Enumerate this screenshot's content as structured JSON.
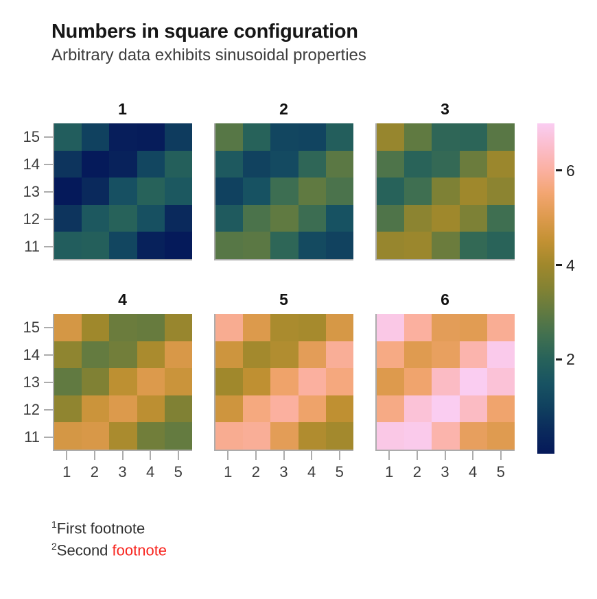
{
  "title": "Numbers in square configuration",
  "subtitle": "Arbitrary data exhibits sinusoidal properties",
  "footnotes": [
    {
      "sup": "1",
      "text": "First footnote",
      "highlight": ""
    },
    {
      "sup": "2",
      "text": "Second ",
      "highlight": "footnote"
    }
  ],
  "colors": {
    "background": "#ffffff",
    "title_text": "#161616",
    "subtitle_text": "#3e3e3e",
    "axis_text": "#3c3c3c",
    "axis_line": "#acacac",
    "colorbar_tick": "#1a1a1a",
    "footnote_text": "#2f2f2f",
    "footnote_highlight": "#f8231d"
  },
  "chart_data": {
    "type": "heatmap",
    "title": "Numbers in square configuration",
    "subtitle": "Arbitrary data exhibits sinusoidal properties",
    "facets": [
      "1",
      "2",
      "3",
      "4",
      "5",
      "6"
    ],
    "x_ticks": [
      "1",
      "2",
      "3",
      "4",
      "5"
    ],
    "y_ticks": [
      "15",
      "14",
      "13",
      "12",
      "11"
    ],
    "grid": false,
    "legend_position": "right",
    "colorbar": {
      "domain": [
        0,
        7
      ],
      "ticks": [
        2,
        4,
        6
      ],
      "colormap_name": "batlow-like",
      "anchors": [
        {
          "v": 0.0,
          "hex": "#05195a"
        },
        {
          "v": 0.5,
          "hex": "#0a2a5c"
        },
        {
          "v": 1.0,
          "hex": "#10415f"
        },
        {
          "v": 1.5,
          "hex": "#185362"
        },
        {
          "v": 2.0,
          "hex": "#27625a"
        },
        {
          "v": 2.5,
          "hex": "#417050"
        },
        {
          "v": 3.0,
          "hex": "#617a41"
        },
        {
          "v": 3.5,
          "hex": "#838233"
        },
        {
          "v": 4.0,
          "hex": "#a0882c"
        },
        {
          "v": 4.5,
          "hex": "#c29133"
        },
        {
          "v": 5.0,
          "hex": "#dd9a4d"
        },
        {
          "v": 5.5,
          "hex": "#f2a570"
        },
        {
          "v": 6.0,
          "hex": "#fbb0a0"
        },
        {
          "v": 6.5,
          "hex": "#fbbdcb"
        },
        {
          "v": 7.0,
          "hex": "#facdf2"
        }
      ]
    },
    "panels": [
      {
        "label": "1",
        "values": [
          [
            1.84,
            0.99,
            0.15,
            0.09,
            0.87
          ],
          [
            0.71,
            0.04,
            0.25,
            1.15,
            1.91
          ],
          [
            0.0,
            0.46,
            1.42,
            1.99,
            1.65
          ],
          [
            0.72,
            1.66,
            1.99,
            1.41,
            0.46
          ],
          [
            1.84,
            1.91,
            1.14,
            0.24,
            0.04
          ]
        ]
      },
      {
        "label": "2",
        "values": [
          [
            2.84,
            1.99,
            1.15,
            1.09,
            1.87
          ],
          [
            1.71,
            1.04,
            1.25,
            2.15,
            2.91
          ],
          [
            1.0,
            1.46,
            2.42,
            2.99,
            2.65
          ],
          [
            1.72,
            2.66,
            2.99,
            2.41,
            1.46
          ],
          [
            2.84,
            2.91,
            2.14,
            1.24,
            1.04
          ]
        ]
      },
      {
        "label": "3",
        "values": [
          [
            3.84,
            2.99,
            2.15,
            2.09,
            2.87
          ],
          [
            2.71,
            2.04,
            2.25,
            3.15,
            3.91
          ],
          [
            2.0,
            2.46,
            3.42,
            3.99,
            3.65
          ],
          [
            2.72,
            3.66,
            3.99,
            3.41,
            2.46
          ],
          [
            3.84,
            3.91,
            3.14,
            2.24,
            2.04
          ]
        ]
      },
      {
        "label": "4",
        "values": [
          [
            4.84,
            3.99,
            3.15,
            3.09,
            3.87
          ],
          [
            3.71,
            3.04,
            3.25,
            4.15,
            4.91
          ],
          [
            3.0,
            3.46,
            4.42,
            4.99,
            4.65
          ],
          [
            3.72,
            4.66,
            4.99,
            4.41,
            3.46
          ],
          [
            4.84,
            4.91,
            4.14,
            3.24,
            3.04
          ]
        ]
      },
      {
        "label": "5",
        "values": [
          [
            5.84,
            4.99,
            4.15,
            4.09,
            4.87
          ],
          [
            4.71,
            4.04,
            4.25,
            5.15,
            5.91
          ],
          [
            4.0,
            4.46,
            5.42,
            5.99,
            5.65
          ],
          [
            4.72,
            5.66,
            5.99,
            5.41,
            4.46
          ],
          [
            5.84,
            5.91,
            5.14,
            4.24,
            4.04
          ]
        ]
      },
      {
        "label": "6",
        "values": [
          [
            6.84,
            5.99,
            5.15,
            5.09,
            5.87
          ],
          [
            5.71,
            5.04,
            5.25,
            6.15,
            6.91
          ],
          [
            5.0,
            5.46,
            6.42,
            6.99,
            6.65
          ],
          [
            5.72,
            6.66,
            6.99,
            6.41,
            5.46
          ],
          [
            6.84,
            6.91,
            6.14,
            5.24,
            5.04
          ]
        ]
      }
    ]
  }
}
